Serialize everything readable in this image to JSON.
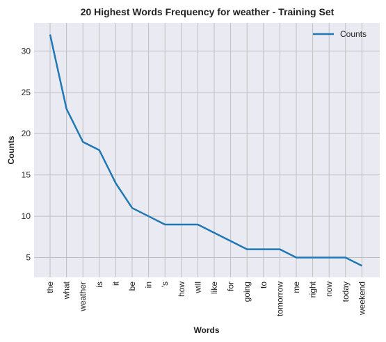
{
  "chart_data": {
    "type": "line",
    "title": "20 Highest Words Frequency for weather - Training Set",
    "xlabel": "Words",
    "ylabel": "Counts",
    "categories": [
      "the",
      "what",
      "weather",
      "is",
      "it",
      "be",
      "in",
      "'s",
      "how",
      "will",
      "like",
      "for",
      "going",
      "to",
      "tomorrow",
      "me",
      "right",
      "now",
      "today",
      "weekend"
    ],
    "series": [
      {
        "name": "Counts",
        "values": [
          32,
          23,
          19,
          18,
          14,
          11,
          10,
          9,
          9,
          9,
          8,
          7,
          6,
          6,
          6,
          5,
          5,
          5,
          5,
          4
        ],
        "color": "#1f77b4"
      }
    ],
    "yticks": [
      5,
      10,
      15,
      20,
      25,
      30
    ],
    "ylim": [
      2.6,
      33.4
    ],
    "grid": true,
    "legend_position": "top-right",
    "background_color": "#eaeaf2",
    "grid_color": "#c0c0c0"
  }
}
